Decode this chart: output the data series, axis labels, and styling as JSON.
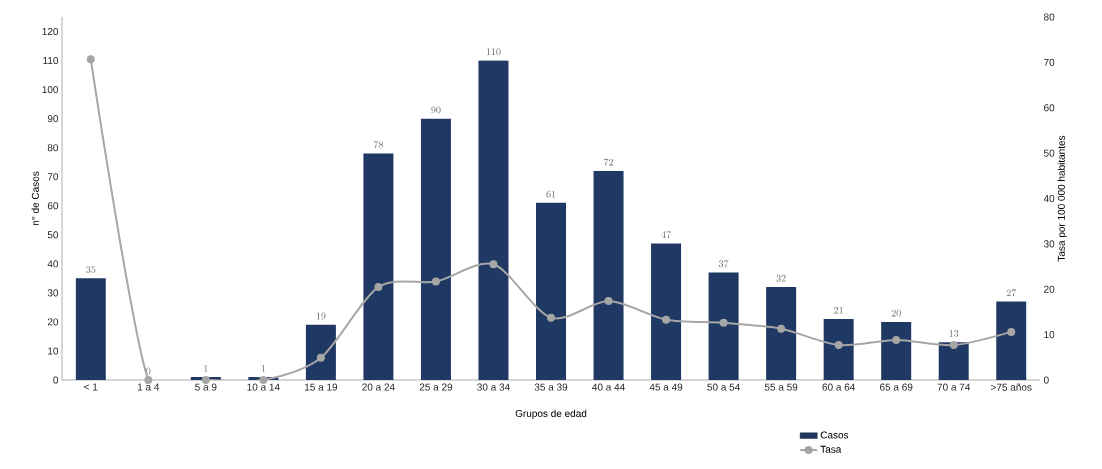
{
  "chart_data": {
    "type": "bar",
    "xlabel": "Grupos de edad",
    "ylabel": "n° de Casos",
    "y2label": "Tasa por 100 000 habitantes",
    "categories": [
      "< 1",
      "1 a 4",
      "5 a 9",
      "10 a 14",
      "15 a 19",
      "20 a 24",
      "25 a 29",
      "30 a 34",
      "35 a 39",
      "40 a 44",
      "45 a 49",
      "50 a 54",
      "55 a 59",
      "60 a 64",
      "65 a 69",
      "70 a 74",
      ">75 años"
    ],
    "series": [
      {
        "name": "Casos",
        "color": "#203864",
        "data_labels": true,
        "values": [
          35,
          0,
          1,
          1,
          19,
          78,
          90,
          110,
          61,
          72,
          47,
          37,
          32,
          21,
          20,
          13,
          27
        ]
      },
      {
        "name": "Tasa",
        "type": "line",
        "axis": "y2",
        "color": "#a6a6a6",
        "marker": "circle",
        "values": [
          70.7,
          0,
          0,
          0,
          4.9,
          20.5,
          21.7,
          25.5,
          13.7,
          17.4,
          13.3,
          12.6,
          11.3,
          7.7,
          8.8,
          7.7,
          10.6
        ]
      }
    ],
    "ylim": [
      0,
      125
    ],
    "yticks": [
      0,
      10,
      20,
      30,
      40,
      50,
      60,
      70,
      80,
      90,
      100,
      110,
      120
    ],
    "y2lim": [
      0,
      80
    ],
    "y2ticks": [
      0,
      10,
      20,
      30,
      40,
      50,
      60,
      70,
      80
    ],
    "grid": false,
    "legend": "bottom"
  }
}
